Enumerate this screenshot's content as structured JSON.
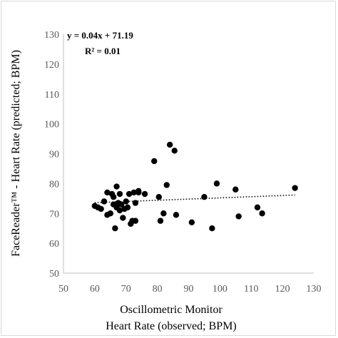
{
  "chart_data": {
    "type": "scatter",
    "title": "",
    "xlabel_line1": "Oscillometric Monitor",
    "xlabel_line2": "Heart Rate (observed; BPM)",
    "ylabel": "FaceReader™ - Heart Rate (predicted; BPM)",
    "xlim": [
      50,
      130
    ],
    "ylim": [
      50,
      130
    ],
    "xticks": [
      "50",
      "60",
      "70",
      "80",
      "90",
      "100",
      "110",
      "120",
      "130"
    ],
    "yticks": [
      "50",
      "60",
      "70",
      "80",
      "90",
      "100",
      "110",
      "120",
      "130"
    ],
    "grid": false,
    "legend": "none",
    "equation": "y = 0.04x + 71.19",
    "r_squared": "R² = 0.01",
    "trendline": {
      "slope": 0.04,
      "intercept": 71.19,
      "style": "dotted"
    },
    "marker_color": "#000000",
    "points": [
      [
        60,
        72.5
      ],
      [
        61,
        72
      ],
      [
        62,
        71.5
      ],
      [
        63,
        74
      ],
      [
        64,
        77
      ],
      [
        64,
        69.5
      ],
      [
        65,
        70
      ],
      [
        65.5,
        76.5
      ],
      [
        66,
        75.5
      ],
      [
        66,
        73
      ],
      [
        66.5,
        65
      ],
      [
        67,
        79
      ],
      [
        67,
        72
      ],
      [
        67.5,
        73.5
      ],
      [
        68,
        76.5
      ],
      [
        68,
        71
      ],
      [
        68.5,
        73
      ],
      [
        69,
        68.5
      ],
      [
        69.5,
        71.5
      ],
      [
        70,
        74
      ],
      [
        70.5,
        72
      ],
      [
        71,
        76.5
      ],
      [
        71.5,
        66.5
      ],
      [
        72,
        67.5
      ],
      [
        72.5,
        77
      ],
      [
        73,
        73.5
      ],
      [
        73,
        67.5
      ],
      [
        74,
        77.5
      ],
      [
        74,
        77
      ],
      [
        76,
        76.5
      ],
      [
        79,
        87.5
      ],
      [
        80.5,
        75.5
      ],
      [
        81,
        67.5
      ],
      [
        82,
        70
      ],
      [
        83,
        79.5
      ],
      [
        84,
        93
      ],
      [
        85.5,
        91
      ],
      [
        86,
        69.5
      ],
      [
        91,
        67
      ],
      [
        95,
        75.5
      ],
      [
        97.5,
        65
      ],
      [
        99,
        80
      ],
      [
        105,
        78
      ],
      [
        106,
        69
      ],
      [
        112,
        72
      ],
      [
        113.5,
        70
      ],
      [
        124,
        78.5
      ]
    ]
  }
}
